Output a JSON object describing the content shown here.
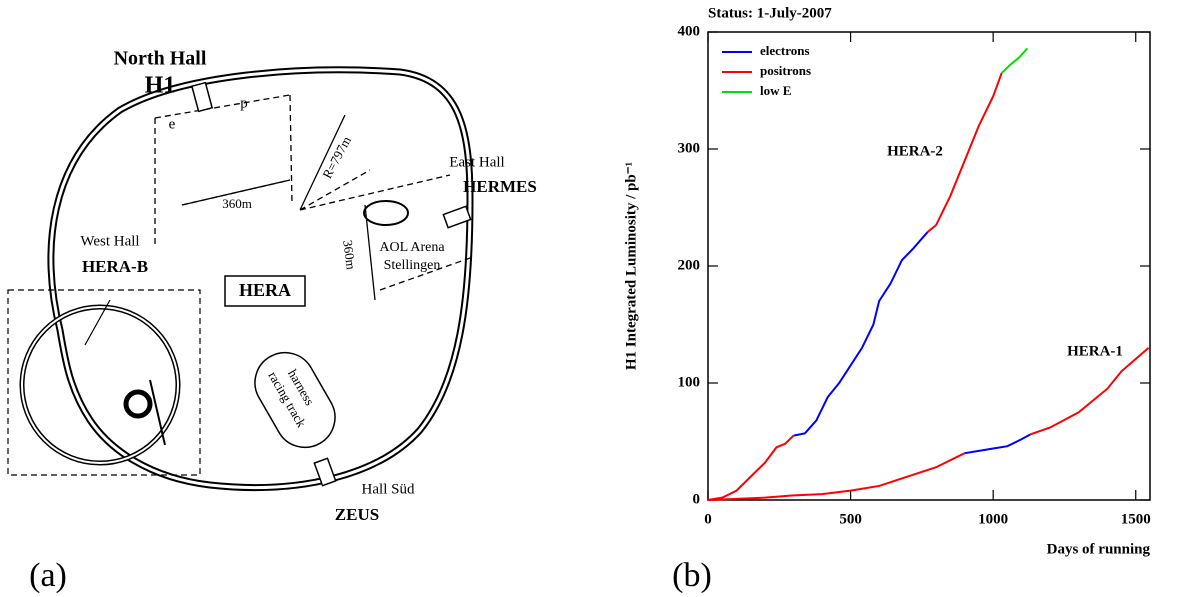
{
  "panels": [
    "(a)",
    "(b)"
  ],
  "diagram": {
    "labels": [
      "North Hall",
      "H1",
      "e",
      "p",
      "R=797m",
      "360m",
      "360m",
      "East Hall",
      "HERMES",
      "AOL Arena",
      "Stellingen",
      "West Hall",
      "HERA-B",
      "HERA",
      "harness",
      "racing track",
      "Hall Süd",
      "ZEUS"
    ]
  },
  "chart_data": {
    "type": "line",
    "title": "Status:  1-July-2007",
    "xlabel": "Days of running",
    "ylabel": "H1 Integrated Luminosity / pb⁻¹",
    "xlim": [
      0,
      1550
    ],
    "xticks": [
      0,
      500,
      1000,
      1500
    ],
    "ylim": [
      0,
      400
    ],
    "yticks": [
      0,
      100,
      200,
      300,
      400
    ],
    "legend": "upper left",
    "annotations": [
      "HERA-2",
      "HERA-1"
    ],
    "series": [
      {
        "name": "electrons",
        "color": "#0000ff",
        "x": [
          300,
          340,
          380,
          420,
          460,
          500,
          540,
          580,
          600,
          640,
          680,
          720,
          770,
          null,
          900,
          950,
          1000,
          1050,
          1100,
          1130
        ],
        "values": [
          55,
          57,
          68,
          88,
          100,
          115,
          130,
          150,
          170,
          185,
          205,
          215,
          229,
          null,
          40,
          42,
          44,
          46,
          52,
          56
        ]
      },
      {
        "name": "positrons",
        "color": "#ff0000",
        "x": [
          0,
          50,
          100,
          150,
          200,
          240,
          270,
          300,
          null,
          770,
          800,
          850,
          900,
          950,
          1000,
          1030,
          null,
          0,
          100,
          200,
          300,
          400,
          500,
          600,
          700,
          800,
          900,
          null,
          1130,
          1200,
          1300,
          1400,
          1450,
          1545
        ],
        "values": [
          0,
          2,
          8,
          20,
          32,
          45,
          48,
          55,
          null,
          229,
          235,
          260,
          290,
          320,
          345,
          365,
          null,
          0,
          1,
          2,
          4,
          5,
          8,
          12,
          20,
          28,
          40,
          null,
          56,
          62,
          75,
          95,
          110,
          130
        ]
      },
      {
        "name": "low E",
        "color": "#00e000",
        "x": [
          1030,
          1060,
          1090,
          1120
        ],
        "values": [
          365,
          372,
          378,
          386
        ]
      }
    ]
  }
}
